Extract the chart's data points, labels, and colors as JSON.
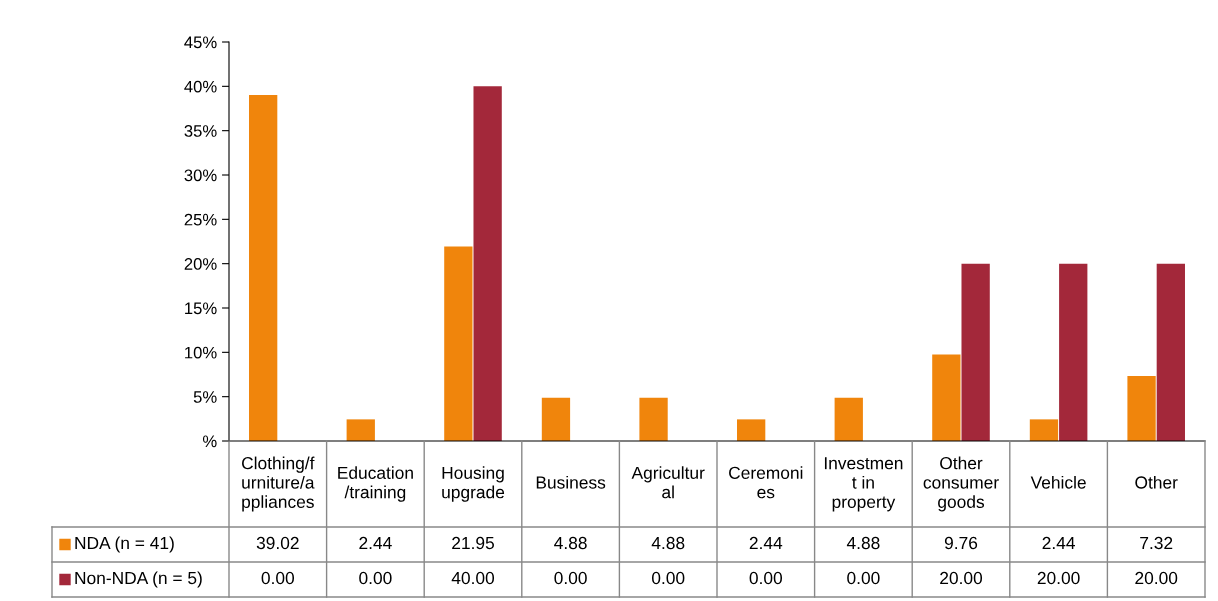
{
  "chart_data": {
    "type": "bar",
    "categories": [
      "Clothing/f\nurniture/a\nppliances",
      "Education\n/training",
      "Housing\nupgrade",
      "Business",
      "Agricultur\nal",
      "Ceremoni\nes",
      "Investmen\nt in\nproperty",
      "Other\nconsumer\ngoods",
      "Vehicle",
      "Other"
    ],
    "series": [
      {
        "name": "NDA (n = 41)",
        "color": "#f0850c",
        "values": [
          39.02,
          2.44,
          21.95,
          4.88,
          4.88,
          2.44,
          4.88,
          9.76,
          2.44,
          7.32
        ],
        "value_labels": [
          "39.02",
          "2.44",
          "21.95",
          "4.88",
          "4.88",
          "2.44",
          "4.88",
          "9.76",
          "2.44",
          "7.32"
        ]
      },
      {
        "name": "Non-NDA (n = 5)",
        "color": "#a3283a",
        "values": [
          0,
          0,
          40,
          0,
          0,
          0,
          0,
          20,
          20,
          20
        ],
        "value_labels": [
          "0.00",
          "0.00",
          "40.00",
          "0.00",
          "0.00",
          "0.00",
          "0.00",
          "20.00",
          "20.00",
          "20.00"
        ]
      }
    ],
    "ylim": [
      0,
      45
    ],
    "yticks": [
      {
        "value": 0,
        "label": "%"
      },
      {
        "value": 5,
        "label": "5%"
      },
      {
        "value": 10,
        "label": "10%"
      },
      {
        "value": 15,
        "label": "15%"
      },
      {
        "value": 20,
        "label": "20%"
      },
      {
        "value": 25,
        "label": "25%"
      },
      {
        "value": 30,
        "label": "30%"
      },
      {
        "value": 35,
        "label": "35%"
      },
      {
        "value": 40,
        "label": "40%"
      },
      {
        "value": 45,
        "label": "45%"
      }
    ],
    "grid": false,
    "legend": "bottom"
  }
}
